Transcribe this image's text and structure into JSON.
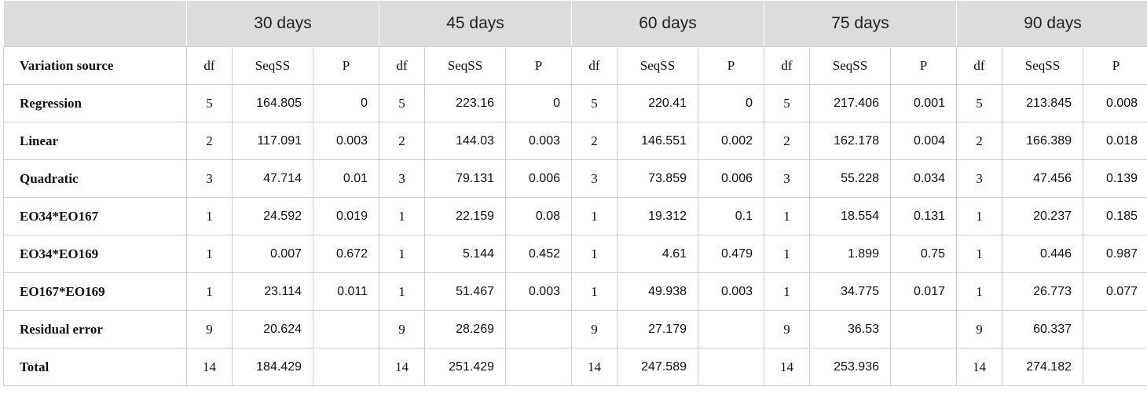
{
  "table": {
    "corner": null,
    "groups": [
      "30 days",
      "45 days",
      "60 days",
      "75 days",
      "90 days"
    ],
    "columns": [
      "Variation source",
      "df",
      "SeqSS",
      "P",
      "df",
      "SeqSS",
      "P",
      "df",
      "SeqSS",
      "P",
      "df",
      "SeqSS",
      "P",
      "df",
      "SeqSS",
      "P"
    ],
    "rows": [
      [
        "Regression",
        5,
        164.805,
        0,
        5,
        223.16,
        0,
        5,
        220.41,
        0,
        5,
        217.406,
        0.001,
        5,
        213.845,
        0.008
      ],
      [
        "Linear",
        2,
        117.091,
        0.003,
        2,
        144.03,
        0.003,
        2,
        146.551,
        0.002,
        2,
        162.178,
        0.004,
        2,
        166.389,
        0.018
      ],
      [
        "Quadratic",
        3,
        47.714,
        0.01,
        3,
        79.131,
        0.006,
        3,
        73.859,
        0.006,
        3,
        55.228,
        0.034,
        3,
        47.456,
        0.139
      ],
      [
        "EO34*EO167",
        1,
        24.592,
        0.019,
        1,
        22.159,
        0.08,
        1,
        19.312,
        0.1,
        1,
        18.554,
        0.131,
        1,
        20.237,
        0.185
      ],
      [
        "EO34*EO169",
        1,
        0.007,
        0.672,
        1,
        5.144,
        0.452,
        1,
        4.61,
        0.479,
        1,
        1.899,
        0.75,
        1,
        0.446,
        0.987
      ],
      [
        "EO167*EO169",
        1,
        23.114,
        0.011,
        1,
        51.467,
        0.003,
        1,
        49.938,
        0.003,
        1,
        34.775,
        0.017,
        1,
        26.773,
        0.077
      ],
      [
        "Residual error",
        9,
        20.624,
        null,
        9,
        28.269,
        null,
        9,
        27.179,
        null,
        9,
        36.53,
        null,
        9,
        60.337,
        null
      ],
      [
        "Total",
        14,
        184.429,
        null,
        14,
        251.429,
        null,
        14,
        247.589,
        null,
        14,
        253.936,
        null,
        14,
        274.182,
        null
      ]
    ]
  }
}
